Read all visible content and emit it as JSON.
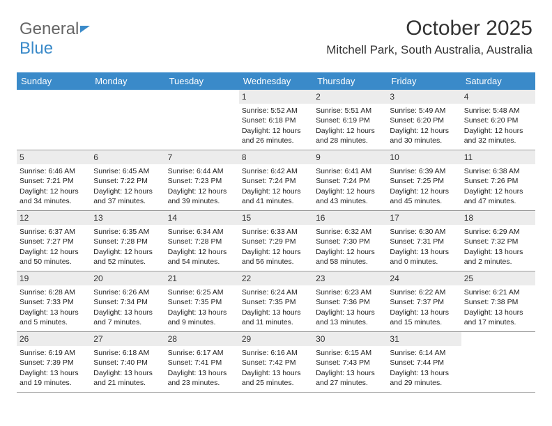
{
  "brand": {
    "part1": "General",
    "part2": "Blue"
  },
  "title": "October 2025",
  "location": "Mitchell Park, South Australia, Australia",
  "dayNames": [
    "Sunday",
    "Monday",
    "Tuesday",
    "Wednesday",
    "Thursday",
    "Friday",
    "Saturday"
  ],
  "colors": {
    "headerBar": "#3a8ac9",
    "dayShade": "#ececec",
    "ruleLine": "#999999",
    "text": "#222222",
    "background": "#ffffff"
  },
  "weeks": [
    [
      {
        "n": "",
        "lines": []
      },
      {
        "n": "",
        "lines": []
      },
      {
        "n": "",
        "lines": []
      },
      {
        "n": "1",
        "lines": [
          "Sunrise: 5:52 AM",
          "Sunset: 6:18 PM",
          "Daylight: 12 hours and 26 minutes."
        ]
      },
      {
        "n": "2",
        "lines": [
          "Sunrise: 5:51 AM",
          "Sunset: 6:19 PM",
          "Daylight: 12 hours and 28 minutes."
        ]
      },
      {
        "n": "3",
        "lines": [
          "Sunrise: 5:49 AM",
          "Sunset: 6:20 PM",
          "Daylight: 12 hours and 30 minutes."
        ]
      },
      {
        "n": "4",
        "lines": [
          "Sunrise: 5:48 AM",
          "Sunset: 6:20 PM",
          "Daylight: 12 hours and 32 minutes."
        ]
      }
    ],
    [
      {
        "n": "5",
        "lines": [
          "Sunrise: 6:46 AM",
          "Sunset: 7:21 PM",
          "Daylight: 12 hours and 34 minutes."
        ]
      },
      {
        "n": "6",
        "lines": [
          "Sunrise: 6:45 AM",
          "Sunset: 7:22 PM",
          "Daylight: 12 hours and 37 minutes."
        ]
      },
      {
        "n": "7",
        "lines": [
          "Sunrise: 6:44 AM",
          "Sunset: 7:23 PM",
          "Daylight: 12 hours and 39 minutes."
        ]
      },
      {
        "n": "8",
        "lines": [
          "Sunrise: 6:42 AM",
          "Sunset: 7:24 PM",
          "Daylight: 12 hours and 41 minutes."
        ]
      },
      {
        "n": "9",
        "lines": [
          "Sunrise: 6:41 AM",
          "Sunset: 7:24 PM",
          "Daylight: 12 hours and 43 minutes."
        ]
      },
      {
        "n": "10",
        "lines": [
          "Sunrise: 6:39 AM",
          "Sunset: 7:25 PM",
          "Daylight: 12 hours and 45 minutes."
        ]
      },
      {
        "n": "11",
        "lines": [
          "Sunrise: 6:38 AM",
          "Sunset: 7:26 PM",
          "Daylight: 12 hours and 47 minutes."
        ]
      }
    ],
    [
      {
        "n": "12",
        "lines": [
          "Sunrise: 6:37 AM",
          "Sunset: 7:27 PM",
          "Daylight: 12 hours and 50 minutes."
        ]
      },
      {
        "n": "13",
        "lines": [
          "Sunrise: 6:35 AM",
          "Sunset: 7:28 PM",
          "Daylight: 12 hours and 52 minutes."
        ]
      },
      {
        "n": "14",
        "lines": [
          "Sunrise: 6:34 AM",
          "Sunset: 7:28 PM",
          "Daylight: 12 hours and 54 minutes."
        ]
      },
      {
        "n": "15",
        "lines": [
          "Sunrise: 6:33 AM",
          "Sunset: 7:29 PM",
          "Daylight: 12 hours and 56 minutes."
        ]
      },
      {
        "n": "16",
        "lines": [
          "Sunrise: 6:32 AM",
          "Sunset: 7:30 PM",
          "Daylight: 12 hours and 58 minutes."
        ]
      },
      {
        "n": "17",
        "lines": [
          "Sunrise: 6:30 AM",
          "Sunset: 7:31 PM",
          "Daylight: 13 hours and 0 minutes."
        ]
      },
      {
        "n": "18",
        "lines": [
          "Sunrise: 6:29 AM",
          "Sunset: 7:32 PM",
          "Daylight: 13 hours and 2 minutes."
        ]
      }
    ],
    [
      {
        "n": "19",
        "lines": [
          "Sunrise: 6:28 AM",
          "Sunset: 7:33 PM",
          "Daylight: 13 hours and 5 minutes."
        ]
      },
      {
        "n": "20",
        "lines": [
          "Sunrise: 6:26 AM",
          "Sunset: 7:34 PM",
          "Daylight: 13 hours and 7 minutes."
        ]
      },
      {
        "n": "21",
        "lines": [
          "Sunrise: 6:25 AM",
          "Sunset: 7:35 PM",
          "Daylight: 13 hours and 9 minutes."
        ]
      },
      {
        "n": "22",
        "lines": [
          "Sunrise: 6:24 AM",
          "Sunset: 7:35 PM",
          "Daylight: 13 hours and 11 minutes."
        ]
      },
      {
        "n": "23",
        "lines": [
          "Sunrise: 6:23 AM",
          "Sunset: 7:36 PM",
          "Daylight: 13 hours and 13 minutes."
        ]
      },
      {
        "n": "24",
        "lines": [
          "Sunrise: 6:22 AM",
          "Sunset: 7:37 PM",
          "Daylight: 13 hours and 15 minutes."
        ]
      },
      {
        "n": "25",
        "lines": [
          "Sunrise: 6:21 AM",
          "Sunset: 7:38 PM",
          "Daylight: 13 hours and 17 minutes."
        ]
      }
    ],
    [
      {
        "n": "26",
        "lines": [
          "Sunrise: 6:19 AM",
          "Sunset: 7:39 PM",
          "Daylight: 13 hours and 19 minutes."
        ]
      },
      {
        "n": "27",
        "lines": [
          "Sunrise: 6:18 AM",
          "Sunset: 7:40 PM",
          "Daylight: 13 hours and 21 minutes."
        ]
      },
      {
        "n": "28",
        "lines": [
          "Sunrise: 6:17 AM",
          "Sunset: 7:41 PM",
          "Daylight: 13 hours and 23 minutes."
        ]
      },
      {
        "n": "29",
        "lines": [
          "Sunrise: 6:16 AM",
          "Sunset: 7:42 PM",
          "Daylight: 13 hours and 25 minutes."
        ]
      },
      {
        "n": "30",
        "lines": [
          "Sunrise: 6:15 AM",
          "Sunset: 7:43 PM",
          "Daylight: 13 hours and 27 minutes."
        ]
      },
      {
        "n": "31",
        "lines": [
          "Sunrise: 6:14 AM",
          "Sunset: 7:44 PM",
          "Daylight: 13 hours and 29 minutes."
        ]
      },
      {
        "n": "",
        "lines": []
      }
    ]
  ]
}
